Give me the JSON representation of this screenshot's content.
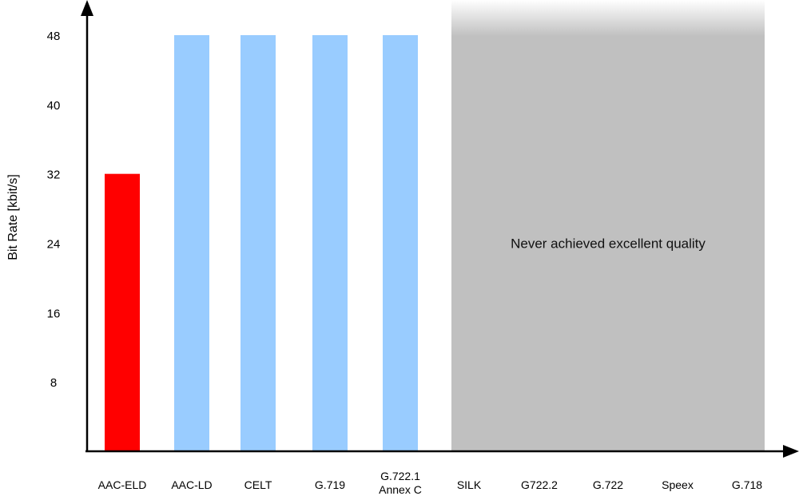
{
  "chart_data": {
    "type": "bar",
    "title": "",
    "xlabel": "",
    "ylabel": "Bit Rate [kbit/s]",
    "ylim": [
      0,
      56
    ],
    "yticks": [
      8,
      16,
      24,
      32,
      40,
      48
    ],
    "grid": false,
    "categories": [
      {
        "label": "AAC-ELD",
        "label_lines": [
          "AAC-ELD"
        ],
        "value": 32,
        "color": "#ff0000"
      },
      {
        "label": "AAC-LD",
        "label_lines": [
          "AAC-LD"
        ],
        "value": 48,
        "color": "#99ccff"
      },
      {
        "label": "CELT",
        "label_lines": [
          "CELT"
        ],
        "value": 48,
        "color": "#99ccff"
      },
      {
        "label": "G.719",
        "label_lines": [
          "G.719"
        ],
        "value": 48,
        "color": "#99ccff"
      },
      {
        "label": "G.722.1 Annex C",
        "label_lines": [
          "G.722.1",
          "Annex C"
        ],
        "value": 48,
        "color": "#99ccff"
      },
      {
        "label": "SILK",
        "label_lines": [
          "SILK"
        ],
        "value": null,
        "color": null
      },
      {
        "label": "G722.2",
        "label_lines": [
          "G722.2"
        ],
        "value": null,
        "color": null
      },
      {
        "label": "G.722",
        "label_lines": [
          "G.722"
        ],
        "value": null,
        "color": null
      },
      {
        "label": "Speex",
        "label_lines": [
          "Speex"
        ],
        "value": null,
        "color": null
      },
      {
        "label": "G.718",
        "label_lines": [
          "G.718"
        ],
        "value": null,
        "color": null
      }
    ],
    "shaded_region": {
      "from_category": "SILK",
      "to_category": "G.718",
      "color": "#c0c0c0",
      "text": "Never achieved excellent quality"
    }
  }
}
